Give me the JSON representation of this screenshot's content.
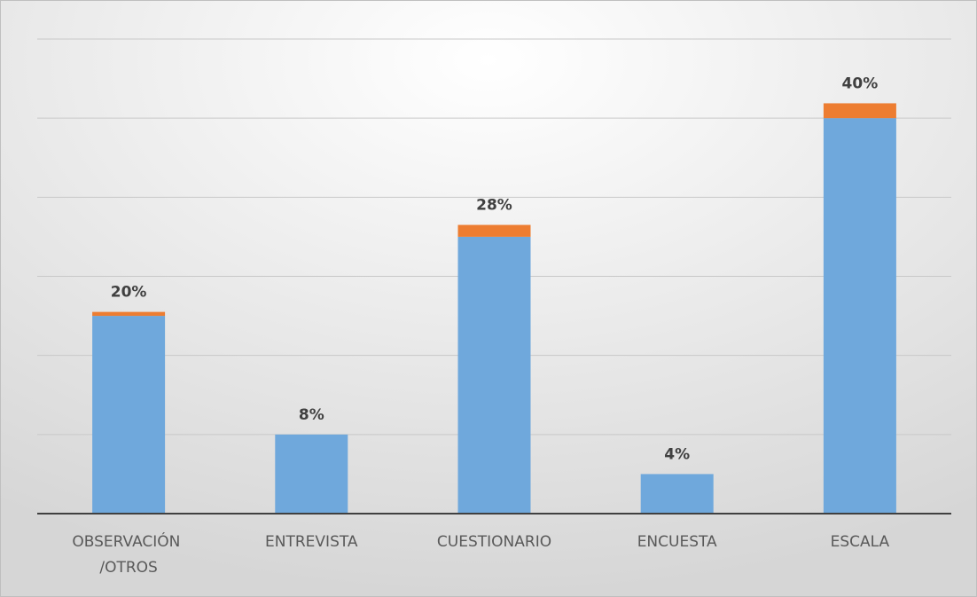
{
  "chart_data": {
    "type": "bar",
    "stacked": true,
    "categories": [
      "OBSERVACIÓN /OTROS",
      "ENTREVISTA",
      "CUESTIONARIO",
      "ENCUESTA",
      "ESCALA"
    ],
    "series": [
      {
        "color": "#6fa8dc",
        "values": [
          20,
          8,
          28,
          4,
          40
        ],
        "value_labels": [
          "20%",
          "8%",
          "28%",
          "4%",
          "40%"
        ]
      },
      {
        "color": "#ed7d31",
        "values": [
          0.4,
          0,
          1.2,
          0,
          1.5
        ]
      }
    ],
    "ylim": [
      0,
      48
    ],
    "yticks": [
      0,
      8,
      16,
      24,
      32,
      40,
      48
    ],
    "grid": true
  }
}
